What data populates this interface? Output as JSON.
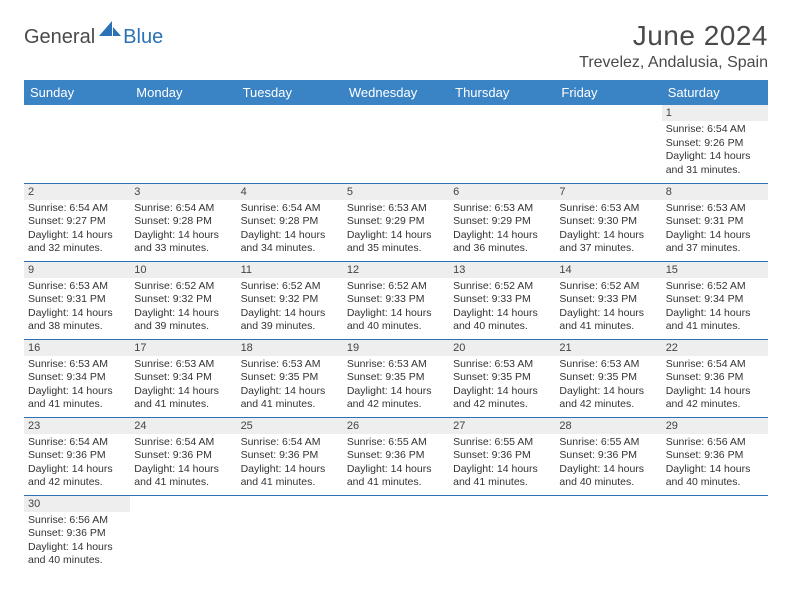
{
  "logo": {
    "part1": "General",
    "part2": "Blue"
  },
  "header": {
    "title": "June 2024",
    "location": "Trevelez, Andalusia, Spain"
  },
  "colors": {
    "header_bg": "#3a83c5",
    "border": "#2a72b5",
    "daynum_bg": "#eeeeee"
  },
  "weekdays": [
    "Sunday",
    "Monday",
    "Tuesday",
    "Wednesday",
    "Thursday",
    "Friday",
    "Saturday"
  ],
  "weeks": [
    [
      null,
      null,
      null,
      null,
      null,
      null,
      {
        "n": "1",
        "sr": "Sunrise: 6:54 AM",
        "ss": "Sunset: 9:26 PM",
        "d1": "Daylight: 14 hours",
        "d2": "and 31 minutes."
      }
    ],
    [
      {
        "n": "2",
        "sr": "Sunrise: 6:54 AM",
        "ss": "Sunset: 9:27 PM",
        "d1": "Daylight: 14 hours",
        "d2": "and 32 minutes."
      },
      {
        "n": "3",
        "sr": "Sunrise: 6:54 AM",
        "ss": "Sunset: 9:28 PM",
        "d1": "Daylight: 14 hours",
        "d2": "and 33 minutes."
      },
      {
        "n": "4",
        "sr": "Sunrise: 6:54 AM",
        "ss": "Sunset: 9:28 PM",
        "d1": "Daylight: 14 hours",
        "d2": "and 34 minutes."
      },
      {
        "n": "5",
        "sr": "Sunrise: 6:53 AM",
        "ss": "Sunset: 9:29 PM",
        "d1": "Daylight: 14 hours",
        "d2": "and 35 minutes."
      },
      {
        "n": "6",
        "sr": "Sunrise: 6:53 AM",
        "ss": "Sunset: 9:29 PM",
        "d1": "Daylight: 14 hours",
        "d2": "and 36 minutes."
      },
      {
        "n": "7",
        "sr": "Sunrise: 6:53 AM",
        "ss": "Sunset: 9:30 PM",
        "d1": "Daylight: 14 hours",
        "d2": "and 37 minutes."
      },
      {
        "n": "8",
        "sr": "Sunrise: 6:53 AM",
        "ss": "Sunset: 9:31 PM",
        "d1": "Daylight: 14 hours",
        "d2": "and 37 minutes."
      }
    ],
    [
      {
        "n": "9",
        "sr": "Sunrise: 6:53 AM",
        "ss": "Sunset: 9:31 PM",
        "d1": "Daylight: 14 hours",
        "d2": "and 38 minutes."
      },
      {
        "n": "10",
        "sr": "Sunrise: 6:52 AM",
        "ss": "Sunset: 9:32 PM",
        "d1": "Daylight: 14 hours",
        "d2": "and 39 minutes."
      },
      {
        "n": "11",
        "sr": "Sunrise: 6:52 AM",
        "ss": "Sunset: 9:32 PM",
        "d1": "Daylight: 14 hours",
        "d2": "and 39 minutes."
      },
      {
        "n": "12",
        "sr": "Sunrise: 6:52 AM",
        "ss": "Sunset: 9:33 PM",
        "d1": "Daylight: 14 hours",
        "d2": "and 40 minutes."
      },
      {
        "n": "13",
        "sr": "Sunrise: 6:52 AM",
        "ss": "Sunset: 9:33 PM",
        "d1": "Daylight: 14 hours",
        "d2": "and 40 minutes."
      },
      {
        "n": "14",
        "sr": "Sunrise: 6:52 AM",
        "ss": "Sunset: 9:33 PM",
        "d1": "Daylight: 14 hours",
        "d2": "and 41 minutes."
      },
      {
        "n": "15",
        "sr": "Sunrise: 6:52 AM",
        "ss": "Sunset: 9:34 PM",
        "d1": "Daylight: 14 hours",
        "d2": "and 41 minutes."
      }
    ],
    [
      {
        "n": "16",
        "sr": "Sunrise: 6:53 AM",
        "ss": "Sunset: 9:34 PM",
        "d1": "Daylight: 14 hours",
        "d2": "and 41 minutes."
      },
      {
        "n": "17",
        "sr": "Sunrise: 6:53 AM",
        "ss": "Sunset: 9:34 PM",
        "d1": "Daylight: 14 hours",
        "d2": "and 41 minutes."
      },
      {
        "n": "18",
        "sr": "Sunrise: 6:53 AM",
        "ss": "Sunset: 9:35 PM",
        "d1": "Daylight: 14 hours",
        "d2": "and 41 minutes."
      },
      {
        "n": "19",
        "sr": "Sunrise: 6:53 AM",
        "ss": "Sunset: 9:35 PM",
        "d1": "Daylight: 14 hours",
        "d2": "and 42 minutes."
      },
      {
        "n": "20",
        "sr": "Sunrise: 6:53 AM",
        "ss": "Sunset: 9:35 PM",
        "d1": "Daylight: 14 hours",
        "d2": "and 42 minutes."
      },
      {
        "n": "21",
        "sr": "Sunrise: 6:53 AM",
        "ss": "Sunset: 9:35 PM",
        "d1": "Daylight: 14 hours",
        "d2": "and 42 minutes."
      },
      {
        "n": "22",
        "sr": "Sunrise: 6:54 AM",
        "ss": "Sunset: 9:36 PM",
        "d1": "Daylight: 14 hours",
        "d2": "and 42 minutes."
      }
    ],
    [
      {
        "n": "23",
        "sr": "Sunrise: 6:54 AM",
        "ss": "Sunset: 9:36 PM",
        "d1": "Daylight: 14 hours",
        "d2": "and 42 minutes."
      },
      {
        "n": "24",
        "sr": "Sunrise: 6:54 AM",
        "ss": "Sunset: 9:36 PM",
        "d1": "Daylight: 14 hours",
        "d2": "and 41 minutes."
      },
      {
        "n": "25",
        "sr": "Sunrise: 6:54 AM",
        "ss": "Sunset: 9:36 PM",
        "d1": "Daylight: 14 hours",
        "d2": "and 41 minutes."
      },
      {
        "n": "26",
        "sr": "Sunrise: 6:55 AM",
        "ss": "Sunset: 9:36 PM",
        "d1": "Daylight: 14 hours",
        "d2": "and 41 minutes."
      },
      {
        "n": "27",
        "sr": "Sunrise: 6:55 AM",
        "ss": "Sunset: 9:36 PM",
        "d1": "Daylight: 14 hours",
        "d2": "and 41 minutes."
      },
      {
        "n": "28",
        "sr": "Sunrise: 6:55 AM",
        "ss": "Sunset: 9:36 PM",
        "d1": "Daylight: 14 hours",
        "d2": "and 40 minutes."
      },
      {
        "n": "29",
        "sr": "Sunrise: 6:56 AM",
        "ss": "Sunset: 9:36 PM",
        "d1": "Daylight: 14 hours",
        "d2": "and 40 minutes."
      }
    ],
    [
      {
        "n": "30",
        "sr": "Sunrise: 6:56 AM",
        "ss": "Sunset: 9:36 PM",
        "d1": "Daylight: 14 hours",
        "d2": "and 40 minutes."
      },
      null,
      null,
      null,
      null,
      null,
      null
    ]
  ]
}
